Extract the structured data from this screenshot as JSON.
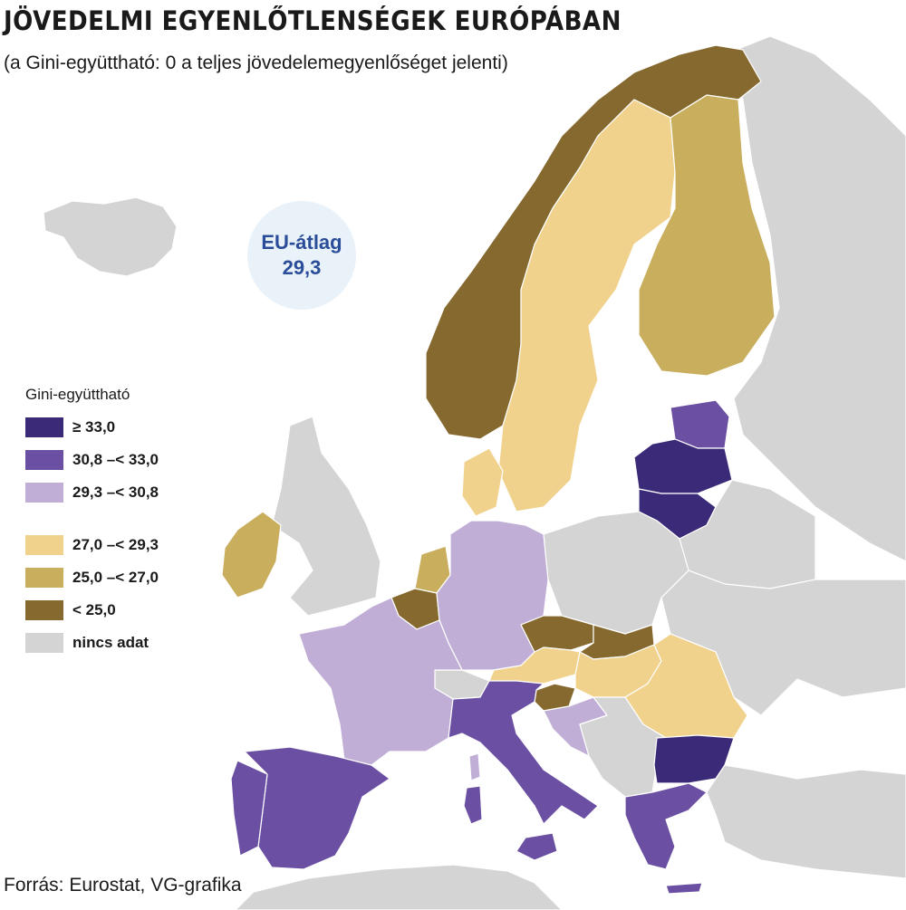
{
  "title": "JÖVEDELMI EGYENLŐTLENSÉGEK EURÓPÁBAN",
  "subtitle": "(a Gini-együttható: 0 a teljes jövedelemegyenlőséget jelenti)",
  "eu_average": {
    "label": "EU-átlag",
    "value": "29,3"
  },
  "legend": {
    "title": "Gini-együttható",
    "items": [
      {
        "label": "≥ 33,0",
        "color": "#3b2a78"
      },
      {
        "label": "30,8 –< 33,0",
        "color": "#6a4fa3"
      },
      {
        "label": "29,3 –< 30,8",
        "color": "#c0aed6"
      },
      {
        "label": "27,0 –< 29,3",
        "color": "#f0d28c"
      },
      {
        "label": "25,0 –< 27,0",
        "color": "#c9ae5e"
      },
      {
        "label": "< 25,0",
        "color": "#86692e"
      },
      {
        "label": "nincs adat",
        "color": "#d4d4d4"
      }
    ]
  },
  "source": "Forrás: Eurostat, VG-grafika",
  "colors": {
    "water": "#ffffff",
    "border": "#ffffff"
  },
  "countries": [
    {
      "id": "iceland",
      "class": "nincs adat"
    },
    {
      "id": "norway",
      "class": "< 25,0"
    },
    {
      "id": "sweden",
      "class": "27,0 –< 29,3"
    },
    {
      "id": "finland",
      "class": "25,0 –< 27,0"
    },
    {
      "id": "russia",
      "class": "nincs adat"
    },
    {
      "id": "estonia",
      "class": "30,8 –< 33,0"
    },
    {
      "id": "latvia",
      "class": "≥ 33,0"
    },
    {
      "id": "lithuania",
      "class": "≥ 33,0"
    },
    {
      "id": "denmark",
      "class": "27,0 –< 29,3"
    },
    {
      "id": "uk",
      "class": "nincs adat"
    },
    {
      "id": "ireland",
      "class": "25,0 –< 27,0"
    },
    {
      "id": "netherlands",
      "class": "25,0 –< 27,0"
    },
    {
      "id": "belgium",
      "class": "< 25,0"
    },
    {
      "id": "germany",
      "class": "29,3 –< 30,8"
    },
    {
      "id": "poland",
      "class": "nincs adat"
    },
    {
      "id": "belarus",
      "class": "nincs adat"
    },
    {
      "id": "ukraine",
      "class": "nincs adat"
    },
    {
      "id": "czechia",
      "class": "< 25,0"
    },
    {
      "id": "slovakia",
      "class": "< 25,0"
    },
    {
      "id": "austria",
      "class": "27,0 –< 29,3"
    },
    {
      "id": "hungary",
      "class": "27,0 –< 29,3"
    },
    {
      "id": "romania",
      "class": "27,0 –< 29,3"
    },
    {
      "id": "slovenia",
      "class": "< 25,0"
    },
    {
      "id": "croatia",
      "class": "29,3 –< 30,8"
    },
    {
      "id": "balkans",
      "class": "nincs adat"
    },
    {
      "id": "bulgaria",
      "class": "≥ 33,0"
    },
    {
      "id": "greece",
      "class": "30,8 –< 33,0"
    },
    {
      "id": "turkey",
      "class": "nincs adat"
    },
    {
      "id": "france",
      "class": "29,3 –< 30,8"
    },
    {
      "id": "switzerland",
      "class": "nincs adat"
    },
    {
      "id": "italy",
      "class": "30,8 –< 33,0"
    },
    {
      "id": "spain",
      "class": "30,8 –< 33,0"
    },
    {
      "id": "portugal",
      "class": "30,8 –< 33,0"
    },
    {
      "id": "north-africa",
      "class": "nincs adat"
    }
  ]
}
